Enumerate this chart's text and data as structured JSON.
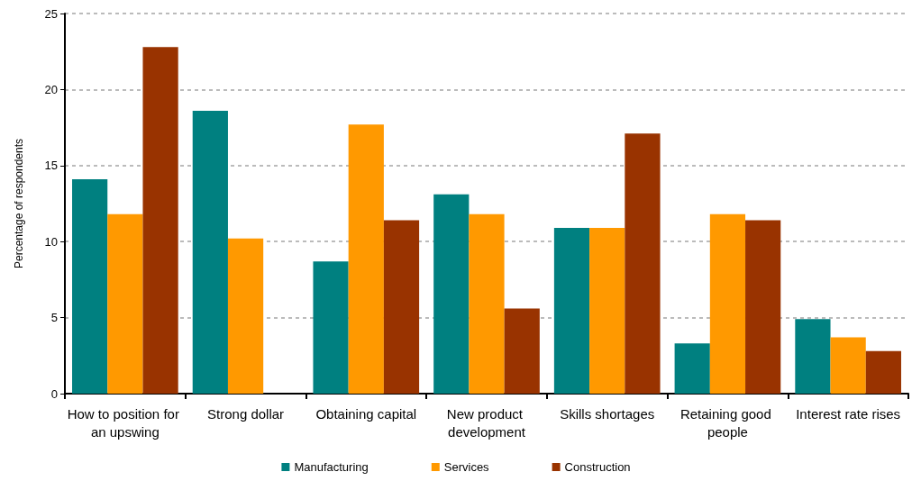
{
  "chart_data": {
    "type": "bar",
    "ylabel": "Percentage of respondents",
    "categories": [
      "How to position for an upswing",
      "Strong dollar",
      "Obtaining capital",
      "New product development",
      "Skills shortages",
      "Retaining good people",
      "Interest rate rises"
    ],
    "series": [
      {
        "name": "Manufacturing",
        "color": "#008080",
        "values": [
          14.1,
          18.6,
          8.7,
          13.1,
          10.9,
          3.3,
          4.9
        ]
      },
      {
        "name": "Services",
        "color": "#ff9900",
        "values": [
          11.8,
          10.2,
          17.7,
          11.8,
          10.9,
          11.8,
          3.7
        ]
      },
      {
        "name": "Construction",
        "color": "#993300",
        "values": [
          22.8,
          0,
          11.4,
          5.6,
          17.1,
          11.4,
          2.8
        ]
      }
    ],
    "ylim": [
      0,
      25
    ],
    "yticks": [
      0,
      5,
      10,
      15,
      20,
      25
    ],
    "grid": "y",
    "legend": "bottom"
  }
}
